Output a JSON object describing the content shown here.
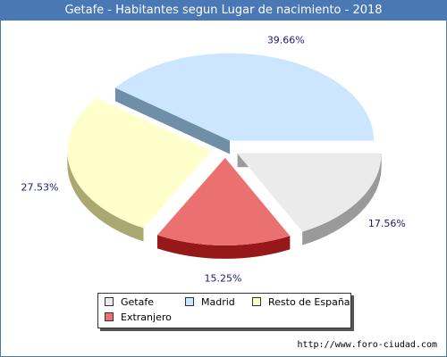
{
  "header": {
    "title": "Getafe - Habitantes segun Lugar de nacimiento - 2018"
  },
  "chart_data": {
    "type": "pie",
    "title": "Getafe - Habitantes segun Lugar de nacimiento - 2018",
    "slices": [
      {
        "name": "Getafe",
        "value": 17.56,
        "label": "17.56%",
        "color": "#ebebeb",
        "side_color": "#9a9a9a"
      },
      {
        "name": "Extranjero",
        "value": 15.25,
        "label": "15.25%",
        "color": "#eb7070",
        "side_color": "#961818"
      },
      {
        "name": "Resto de España",
        "value": 27.53,
        "label": "27.53%",
        "color": "#ffffcc",
        "side_color": "#a8a870"
      },
      {
        "name": "Madrid",
        "value": 39.66,
        "label": "39.66%",
        "color": "#cce6ff",
        "side_color": "#6f8ea8"
      }
    ],
    "legend_placement": "bottom"
  },
  "legend": {
    "items": [
      {
        "label": "Getafe",
        "color": "#ebebeb"
      },
      {
        "label": "Madrid",
        "color": "#cce6ff"
      },
      {
        "label": "Resto de España",
        "color": "#ffffcc"
      },
      {
        "label": "Extranjero",
        "color": "#eb7070"
      }
    ]
  },
  "footer": {
    "url": "http://www.foro-ciudad.com"
  }
}
